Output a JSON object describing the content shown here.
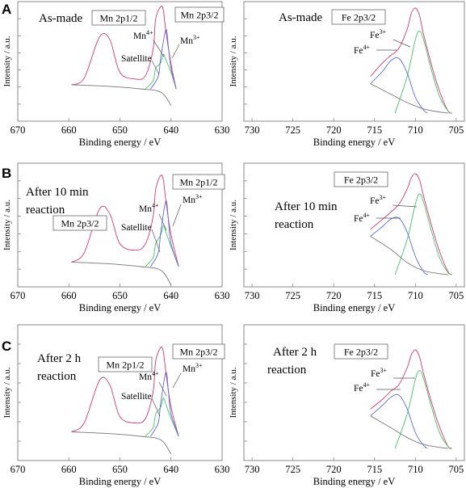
{
  "chart_data": [
    {
      "type": "line",
      "panel": "A",
      "element": "Mn",
      "condition": "As-made",
      "labels": {
        "box1": "Mn 2p1/2",
        "box2": "Mn 2p3/2"
      },
      "annotations": [
        {
          "base": "Mn",
          "sup": "4+"
        },
        {
          "base": "Mn",
          "sup": "3+"
        },
        {
          "base": "Satellite",
          "sup": ""
        }
      ],
      "xlabel": "Binding energy / eV",
      "ylabel": "Intensity / a.u.",
      "xlim": [
        670,
        630
      ],
      "xticks": [
        "670",
        "660",
        "650",
        "640",
        "630"
      ],
      "series": [
        {
          "role": "envelope",
          "color": "#d23a6a",
          "x": [
            659.5,
            657,
            654,
            652,
            650,
            647,
            645,
            643.5,
            643,
            642,
            641.5,
            641,
            640,
            639
          ],
          "y": [
            0.05,
            0.13,
            0.63,
            0.6,
            0.2,
            0.12,
            0.16,
            0.48,
            0.85,
            1.0,
            0.95,
            0.7,
            0.3,
            0.0
          ]
        },
        {
          "role": "mn4",
          "color": "#4ac06a",
          "x": [
            645,
            643.5,
            643,
            642,
            641.5,
            641,
            640,
            639
          ],
          "y": [
            0.0,
            0.1,
            0.25,
            0.32,
            0.42,
            0.35,
            0.2,
            0.0
          ]
        },
        {
          "role": "mn3",
          "color": "#5a6ad8",
          "x": [
            644,
            642.5,
            642,
            641,
            640.5,
            640,
            639
          ],
          "y": [
            0.0,
            0.15,
            0.38,
            0.72,
            0.5,
            0.25,
            0.0
          ]
        }
      ]
    },
    {
      "type": "line",
      "panel": "A",
      "element": "Fe",
      "condition": "As-made",
      "labels": {
        "box1": "Fe 2p3/2"
      },
      "annotations": [
        {
          "base": "Fe",
          "sup": "3+"
        },
        {
          "base": "Fe",
          "sup": "4+"
        }
      ],
      "xlabel": "Binding energy / eV",
      "ylabel": "Intensity / a.u.",
      "xlim": [
        731,
        704
      ],
      "xticks": [
        "730",
        "725",
        "720",
        "715",
        "710",
        "705"
      ],
      "series": [
        {
          "role": "envelope",
          "color": "#d23a6a",
          "x": [
            715.5,
            714,
            713,
            712,
            711,
            710.5,
            710,
            709.5,
            709,
            708,
            707,
            706,
            705.5
          ],
          "y": [
            0.35,
            0.48,
            0.55,
            0.62,
            0.8,
            0.95,
            1.0,
            0.93,
            0.75,
            0.45,
            0.2,
            0.02,
            0.0
          ]
        },
        {
          "role": "fe3",
          "color": "#4ac06a",
          "x": [
            712.5,
            711,
            710,
            709.5,
            709,
            708,
            707,
            706,
            705.5
          ],
          "y": [
            0.0,
            0.35,
            0.7,
            0.78,
            0.7,
            0.4,
            0.15,
            0.02,
            0.0
          ]
        },
        {
          "role": "fe4",
          "color": "#5a6ad8",
          "x": [
            715.5,
            714,
            713,
            712,
            711,
            710,
            709,
            708.5
          ],
          "y": [
            0.28,
            0.4,
            0.5,
            0.52,
            0.38,
            0.15,
            0.03,
            0.0
          ]
        },
        {
          "role": "background",
          "color": "#777777",
          "x": [
            715.5,
            713,
            711,
            709,
            707,
            706
          ],
          "y": [
            0.28,
            0.18,
            0.1,
            0.04,
            0.01,
            0.0
          ]
        }
      ]
    },
    {
      "type": "line",
      "panel": "B",
      "element": "Mn",
      "condition": "After 10 min reaction",
      "labels": {
        "box1": "Mn 2p1/2",
        "box2": "Mn 2p3/2"
      },
      "annotations": [
        {
          "base": "Mn",
          "sup": "4+"
        },
        {
          "base": "Mn",
          "sup": "3+"
        },
        {
          "base": "Satellite",
          "sup": ""
        }
      ],
      "xlabel": "Binding energy / eV",
      "ylabel": "Intensity / a.u.",
      "xlim": [
        670,
        630
      ],
      "xticks": [
        "670",
        "660",
        "650",
        "640",
        "630"
      ],
      "series": [
        {
          "role": "envelope",
          "color": "#d23a6a",
          "x": [
            659.5,
            657,
            654,
            652,
            650,
            647,
            645,
            643.5,
            643,
            642,
            641.5,
            641,
            640,
            638.5
          ],
          "y": [
            0.05,
            0.15,
            0.63,
            0.58,
            0.25,
            0.18,
            0.25,
            0.55,
            0.85,
            1.0,
            0.95,
            0.72,
            0.35,
            0.0
          ]
        },
        {
          "role": "mn4",
          "color": "#4ac06a",
          "x": [
            645,
            643.5,
            643,
            642,
            641.5,
            641,
            640,
            638.5
          ],
          "y": [
            0.0,
            0.1,
            0.25,
            0.35,
            0.45,
            0.38,
            0.22,
            0.0
          ]
        },
        {
          "role": "mn3",
          "color": "#5a6ad8",
          "x": [
            644,
            642.5,
            642,
            641,
            640.5,
            640,
            638.5
          ],
          "y": [
            0.0,
            0.15,
            0.38,
            0.72,
            0.5,
            0.25,
            0.0
          ]
        }
      ]
    },
    {
      "type": "line",
      "panel": "B",
      "element": "Fe",
      "condition": "After 10 min reaction",
      "labels": {
        "box1": "Fe 2p3/2"
      },
      "annotations": [
        {
          "base": "Fe",
          "sup": "3+"
        },
        {
          "base": "Fe",
          "sup": "4+"
        }
      ],
      "xlabel": "Binding energy / eV",
      "ylabel": "Intensity / a.u.",
      "xlim": [
        731,
        704
      ],
      "xticks": [
        "730",
        "725",
        "720",
        "715",
        "710",
        "705"
      ],
      "series": [
        {
          "role": "envelope",
          "color": "#d23a6a",
          "x": [
            715.5,
            714,
            713,
            712,
            711,
            710.5,
            710,
            709.5,
            709,
            708,
            707,
            706,
            705.5
          ],
          "y": [
            0.45,
            0.55,
            0.62,
            0.7,
            0.85,
            0.96,
            1.0,
            0.94,
            0.78,
            0.48,
            0.22,
            0.03,
            0.0
          ]
        },
        {
          "role": "fe3",
          "color": "#4ac06a",
          "x": [
            712.5,
            711,
            710,
            709.5,
            709,
            708,
            707,
            706,
            705.5
          ],
          "y": [
            0.0,
            0.35,
            0.7,
            0.8,
            0.72,
            0.42,
            0.16,
            0.02,
            0.0
          ]
        },
        {
          "role": "fe4",
          "color": "#5a6ad8",
          "x": [
            715.5,
            714,
            713,
            712,
            711,
            710,
            709,
            708.5
          ],
          "y": [
            0.38,
            0.48,
            0.55,
            0.56,
            0.42,
            0.18,
            0.03,
            0.0
          ]
        },
        {
          "role": "background",
          "color": "#777777",
          "x": [
            715.5,
            713,
            711,
            709,
            707,
            706
          ],
          "y": [
            0.38,
            0.25,
            0.12,
            0.04,
            0.01,
            0.0
          ]
        }
      ]
    },
    {
      "type": "line",
      "panel": "C",
      "element": "Mn",
      "condition": "After 2 h reaction",
      "labels": {
        "box1": "Mn 2p1/2",
        "box2": "Mn 2p3/2"
      },
      "annotations": [
        {
          "base": "Mn",
          "sup": "4+"
        },
        {
          "base": "Mn",
          "sup": "3+"
        },
        {
          "base": "Satellite",
          "sup": ""
        }
      ],
      "xlabel": "Binding energy / eV",
      "ylabel": "Intensity / a.u.",
      "xlim": [
        670,
        630
      ],
      "xticks": [
        "670",
        "660",
        "650",
        "640",
        "630"
      ],
      "series": [
        {
          "role": "envelope",
          "color": "#d23a6a",
          "x": [
            659.5,
            657,
            654,
            652,
            650,
            647,
            645,
            643.5,
            643,
            642,
            641.5,
            641,
            640,
            638.5
          ],
          "y": [
            0.05,
            0.15,
            0.63,
            0.58,
            0.22,
            0.15,
            0.2,
            0.5,
            0.85,
            1.0,
            0.95,
            0.72,
            0.33,
            0.0
          ]
        },
        {
          "role": "mn4",
          "color": "#4ac06a",
          "x": [
            645,
            643.5,
            643,
            642,
            641.5,
            641,
            640,
            638.5
          ],
          "y": [
            0.0,
            0.1,
            0.25,
            0.33,
            0.43,
            0.36,
            0.2,
            0.0
          ]
        },
        {
          "role": "mn3",
          "color": "#5a6ad8",
          "x": [
            644,
            642.5,
            642,
            641,
            640.5,
            640,
            638.5
          ],
          "y": [
            0.0,
            0.15,
            0.38,
            0.72,
            0.5,
            0.25,
            0.0
          ]
        }
      ]
    },
    {
      "type": "line",
      "panel": "C",
      "element": "Fe",
      "condition": "After 2 h reaction",
      "labels": {
        "box1": "Fe 2p3/2"
      },
      "annotations": [
        {
          "base": "Fe",
          "sup": "3+"
        },
        {
          "base": "Fe",
          "sup": "4+"
        }
      ],
      "xlabel": "Binding energy / eV",
      "ylabel": "Intensity / a.u.",
      "xlim": [
        731,
        704
      ],
      "xticks": [
        "730",
        "725",
        "720",
        "715",
        "710",
        "705"
      ],
      "series": [
        {
          "role": "envelope",
          "color": "#d23a6a",
          "x": [
            715.5,
            714,
            713,
            712,
            711,
            710.5,
            710,
            709.5,
            709,
            708,
            707,
            706,
            705.5
          ],
          "y": [
            0.4,
            0.5,
            0.58,
            0.65,
            0.82,
            0.95,
            1.0,
            0.93,
            0.76,
            0.46,
            0.21,
            0.02,
            0.0
          ]
        },
        {
          "role": "fe3",
          "color": "#4ac06a",
          "x": [
            712.5,
            711,
            710,
            709.5,
            709,
            708,
            707,
            706,
            705.5
          ],
          "y": [
            0.0,
            0.35,
            0.7,
            0.79,
            0.71,
            0.41,
            0.15,
            0.02,
            0.0
          ]
        },
        {
          "role": "fe4",
          "color": "#5a6ad8",
          "x": [
            715.5,
            714,
            713,
            712,
            711,
            710,
            709,
            708.5
          ],
          "y": [
            0.33,
            0.44,
            0.52,
            0.54,
            0.4,
            0.16,
            0.03,
            0.0
          ]
        },
        {
          "role": "background",
          "color": "#777777",
          "x": [
            715.5,
            713,
            711,
            709,
            707,
            706
          ],
          "y": [
            0.33,
            0.21,
            0.11,
            0.04,
            0.01,
            0.0
          ]
        }
      ]
    }
  ]
}
